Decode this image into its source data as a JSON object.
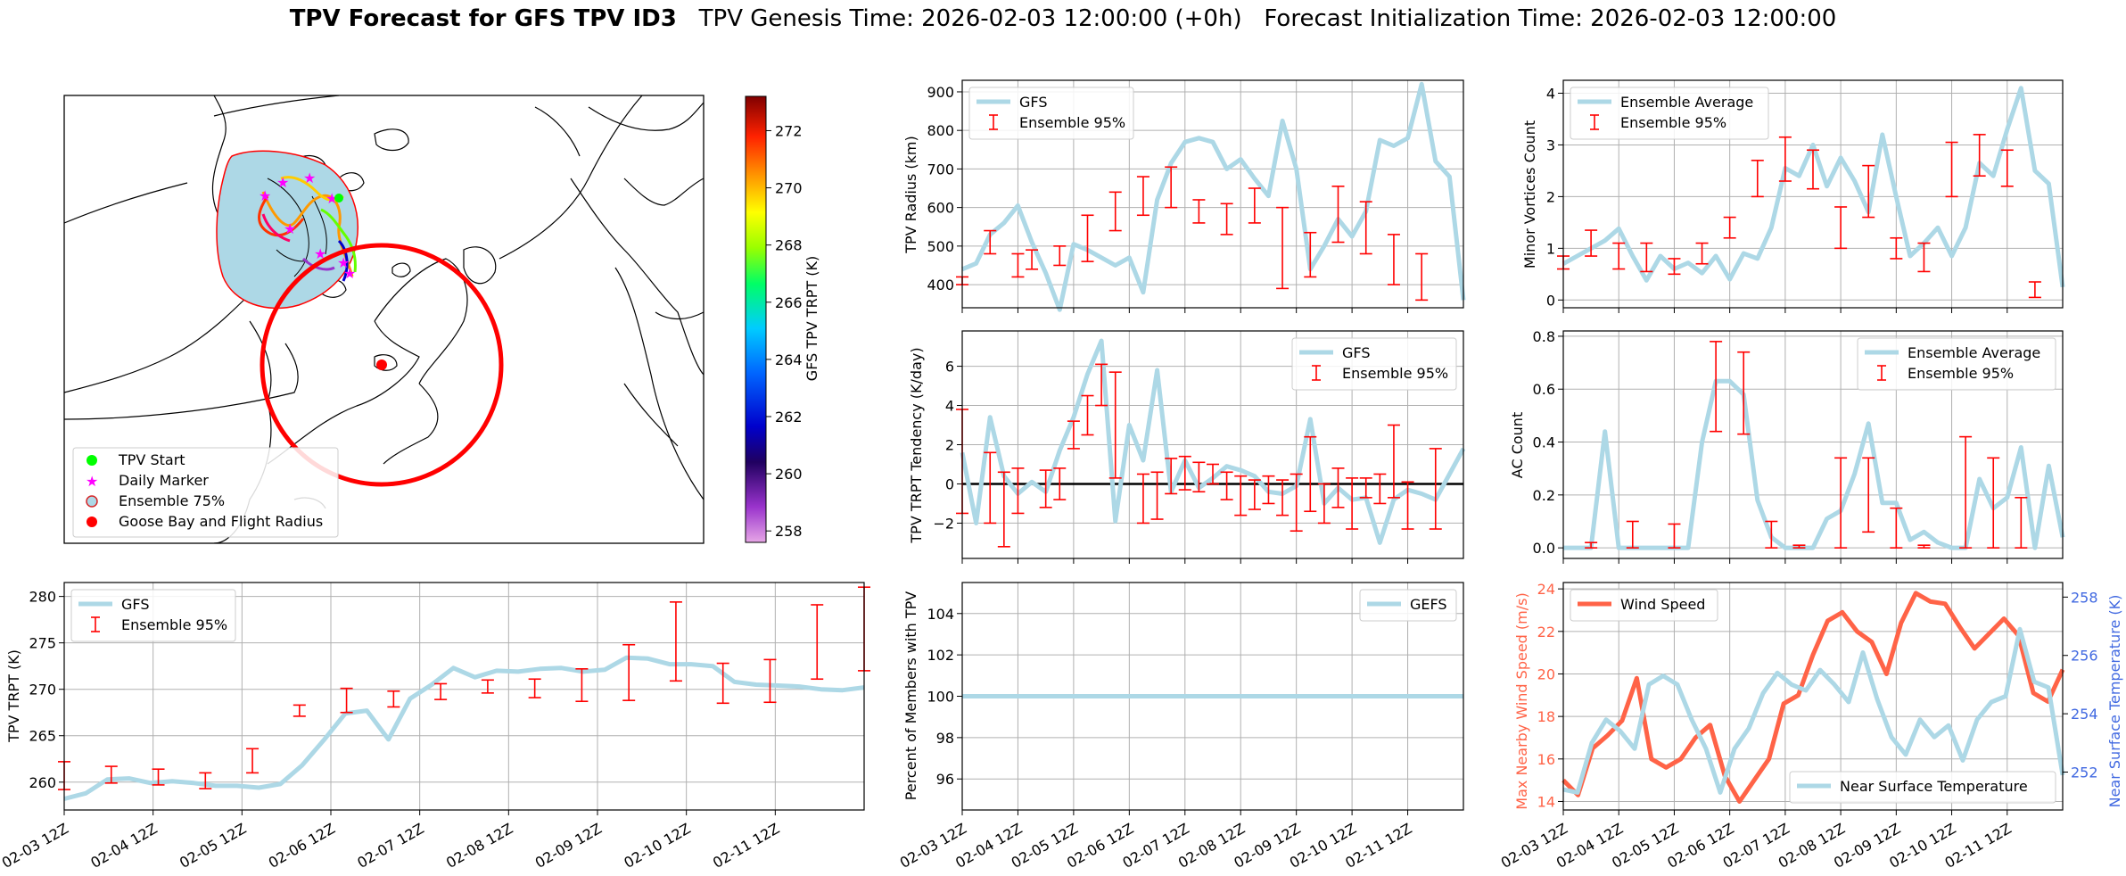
{
  "page_title": {
    "main": "TPV Forecast for GFS TPV ID3",
    "genesis": "TPV Genesis Time: 2026-02-03 12:00:00 (+0h)",
    "init": "Forecast Initialization Time: 2026-02-03 12:00:00"
  },
  "colors": {
    "gfs": "#add8e6",
    "ens": "#ff0000",
    "wind": "#ff6347",
    "temp": "#add8e6",
    "wind_axis": "#ff6347",
    "temp_axis": "#4169e1",
    "zero_line": "#000000",
    "map_fill": "#add8e6",
    "radius": "#ff0000"
  },
  "time_ticks": [
    "02-03 12Z",
    "02-04 12Z",
    "02-05 12Z",
    "02-06 12Z",
    "02-07 12Z",
    "02-08 12Z",
    "02-09 12Z",
    "02-10 12Z",
    "02-11 12Z"
  ],
  "chart_data": [
    {
      "id": "map",
      "type": "map",
      "legend": [
        {
          "label": "TPV Start",
          "marker": "circle",
          "color": "#00ff00"
        },
        {
          "label": "Daily Marker",
          "marker": "star",
          "color": "#ff00ff"
        },
        {
          "label": "Ensemble 75%",
          "marker": "circle-outline",
          "color": "#add8e6"
        },
        {
          "label": "Goose Bay and Flight Radius",
          "marker": "circle",
          "color": "#ff0000"
        }
      ],
      "colorbar": {
        "label": "GFS TPV TRPT (K)",
        "range": [
          257.6,
          273.2
        ],
        "ticks": [
          "258",
          "260",
          "262",
          "264",
          "266",
          "268",
          "270",
          "272"
        ]
      }
    },
    {
      "id": "radius",
      "type": "line",
      "ylabel": "TPV Radius (km)",
      "ylim": [
        340,
        930
      ],
      "yticks": [
        "400",
        "500",
        "600",
        "700",
        "800",
        "900"
      ],
      "legend": [
        "GFS",
        "Ensemble 95%"
      ],
      "legend_loc": "upper-left",
      "series": [
        {
          "name": "GFS",
          "values": [
            440,
            455,
            530,
            560,
            605,
            510,
            430,
            335,
            505,
            490,
            470,
            450,
            470,
            380,
            620,
            715,
            770,
            780,
            770,
            700,
            725,
            675,
            630,
            825,
            700,
            440,
            500,
            570,
            525,
            590,
            775,
            760,
            780,
            920,
            720,
            680,
            360
          ]
        }
      ],
      "errorbars": [
        {
          "i": 0,
          "lo": 400,
          "hi": 420
        },
        {
          "i": 2,
          "lo": 480,
          "hi": 540
        },
        {
          "i": 4,
          "lo": 420,
          "hi": 480
        },
        {
          "i": 5,
          "lo": 440,
          "hi": 490
        },
        {
          "i": 7,
          "lo": 450,
          "hi": 500
        },
        {
          "i": 9,
          "lo": 460,
          "hi": 580
        },
        {
          "i": 11,
          "lo": 540,
          "hi": 640
        },
        {
          "i": 13,
          "lo": 580,
          "hi": 680
        },
        {
          "i": 15,
          "lo": 600,
          "hi": 705
        },
        {
          "i": 17,
          "lo": 560,
          "hi": 620
        },
        {
          "i": 19,
          "lo": 530,
          "hi": 610
        },
        {
          "i": 21,
          "lo": 560,
          "hi": 650
        },
        {
          "i": 23,
          "lo": 390,
          "hi": 600
        },
        {
          "i": 25,
          "lo": 420,
          "hi": 535
        },
        {
          "i": 27,
          "lo": 510,
          "hi": 655
        },
        {
          "i": 29,
          "lo": 480,
          "hi": 615
        },
        {
          "i": 31,
          "lo": 400,
          "hi": 530
        },
        {
          "i": 33,
          "lo": 360,
          "hi": 480
        }
      ]
    },
    {
      "id": "minor",
      "type": "line",
      "ylabel": "Minor Vortices Count",
      "ylim": [
        -0.15,
        4.25
      ],
      "yticks": [
        "0",
        "1",
        "2",
        "3",
        "4"
      ],
      "legend": [
        "Ensemble Average",
        "Ensemble 95%"
      ],
      "legend_loc": "upper-left",
      "series": [
        {
          "name": "Ensemble Average",
          "values": [
            0.7,
            0.85,
            1.0,
            1.15,
            1.38,
            0.85,
            0.38,
            0.85,
            0.6,
            0.72,
            0.52,
            0.85,
            0.4,
            0.9,
            0.8,
            1.4,
            2.55,
            2.4,
            3.0,
            2.2,
            2.75,
            2.3,
            1.7,
            3.2,
            2.0,
            0.85,
            1.1,
            1.4,
            0.85,
            1.4,
            2.65,
            2.4,
            3.3,
            4.1,
            2.5,
            2.25,
            0.25
          ]
        }
      ],
      "errorbars": [
        {
          "i": 0,
          "lo": 0.6,
          "hi": 0.85
        },
        {
          "i": 2,
          "lo": 0.85,
          "hi": 1.35
        },
        {
          "i": 4,
          "lo": 0.6,
          "hi": 1.1
        },
        {
          "i": 6,
          "lo": 0.55,
          "hi": 1.1
        },
        {
          "i": 8,
          "lo": 0.5,
          "hi": 0.8
        },
        {
          "i": 10,
          "lo": 0.7,
          "hi": 1.1
        },
        {
          "i": 12,
          "lo": 1.2,
          "hi": 1.6
        },
        {
          "i": 14,
          "lo": 2.0,
          "hi": 2.7
        },
        {
          "i": 16,
          "lo": 2.3,
          "hi": 3.15
        },
        {
          "i": 18,
          "lo": 2.15,
          "hi": 2.9
        },
        {
          "i": 20,
          "lo": 1.0,
          "hi": 1.8
        },
        {
          "i": 22,
          "lo": 1.6,
          "hi": 2.6
        },
        {
          "i": 24,
          "lo": 0.8,
          "hi": 1.2
        },
        {
          "i": 26,
          "lo": 0.55,
          "hi": 1.1
        },
        {
          "i": 28,
          "lo": 2.0,
          "hi": 3.05
        },
        {
          "i": 30,
          "lo": 2.4,
          "hi": 3.2
        },
        {
          "i": 32,
          "lo": 2.2,
          "hi": 2.9
        },
        {
          "i": 34,
          "lo": 0.05,
          "hi": 0.35
        }
      ]
    },
    {
      "id": "tendency",
      "type": "line",
      "ylabel": "TPV TRPT Tendency (K/day)",
      "ylim": [
        -3.8,
        7.8
      ],
      "yticks": [
        "−2",
        "0",
        "2",
        "4",
        "6"
      ],
      "legend": [
        "GFS",
        "Ensemble 95%"
      ],
      "legend_loc": "upper-right",
      "zero_line": true,
      "series": [
        {
          "name": "GFS",
          "values": [
            1.6,
            -2.0,
            3.4,
            0.4,
            -0.5,
            0.1,
            -0.4,
            1.7,
            3.4,
            5.6,
            7.3,
            -1.9,
            3.0,
            1.2,
            5.8,
            -0.4,
            1.2,
            -0.2,
            0.3,
            0.9,
            0.7,
            0.4,
            -0.4,
            -0.5,
            -0.1,
            3.3,
            -1.0,
            -0.2,
            -0.8,
            -0.7,
            -3.0,
            -0.8,
            -0.3,
            -0.5,
            -0.8,
            0.5,
            1.8
          ]
        }
      ],
      "errorbars": [
        {
          "i": 0,
          "lo": -1.5,
          "hi": 3.8
        },
        {
          "i": 2,
          "lo": -2.0,
          "hi": 1.6
        },
        {
          "i": 3,
          "lo": -3.2,
          "hi": 0.6
        },
        {
          "i": 4,
          "lo": -1.5,
          "hi": 0.8
        },
        {
          "i": 6,
          "lo": -1.2,
          "hi": 0.7
        },
        {
          "i": 7,
          "lo": -0.8,
          "hi": 0.8
        },
        {
          "i": 8,
          "lo": 1.8,
          "hi": 3.2
        },
        {
          "i": 9,
          "lo": 2.5,
          "hi": 4.5
        },
        {
          "i": 10,
          "lo": 4.0,
          "hi": 6.1
        },
        {
          "i": 11,
          "lo": 0.3,
          "hi": 5.7
        },
        {
          "i": 13,
          "lo": -2.0,
          "hi": 0.5
        },
        {
          "i": 14,
          "lo": -1.8,
          "hi": 0.6
        },
        {
          "i": 15,
          "lo": -0.5,
          "hi": 1.3
        },
        {
          "i": 16,
          "lo": -0.3,
          "hi": 1.4
        },
        {
          "i": 17,
          "lo": -0.4,
          "hi": 1.1
        },
        {
          "i": 18,
          "lo": 0.0,
          "hi": 1.0
        },
        {
          "i": 19,
          "lo": -0.8,
          "hi": 0.6
        },
        {
          "i": 20,
          "lo": -1.6,
          "hi": 0.4
        },
        {
          "i": 21,
          "lo": -1.3,
          "hi": 0.2
        },
        {
          "i": 22,
          "lo": -1.0,
          "hi": 0.4
        },
        {
          "i": 23,
          "lo": -1.6,
          "hi": 0.2
        },
        {
          "i": 24,
          "lo": -2.4,
          "hi": 0.5
        },
        {
          "i": 25,
          "lo": -1.4,
          "hi": 2.4
        },
        {
          "i": 26,
          "lo": -2.0,
          "hi": 0.0
        },
        {
          "i": 27,
          "lo": -1.2,
          "hi": 0.8
        },
        {
          "i": 28,
          "lo": -2.3,
          "hi": 0.3
        },
        {
          "i": 29,
          "lo": -0.7,
          "hi": 0.3
        },
        {
          "i": 30,
          "lo": -1.0,
          "hi": 0.5
        },
        {
          "i": 31,
          "lo": -0.7,
          "hi": 3.0
        },
        {
          "i": 32,
          "lo": -2.3,
          "hi": 0.1
        },
        {
          "i": 34,
          "lo": -2.3,
          "hi": 1.8
        }
      ]
    },
    {
      "id": "ac",
      "type": "line",
      "ylabel": "AC Count",
      "ylim": [
        -0.04,
        0.82
      ],
      "yticks": [
        "0.0",
        "0.2",
        "0.4",
        "0.6",
        "0.8"
      ],
      "legend": [
        "Ensemble Average",
        "Ensemble 95%"
      ],
      "legend_loc": "upper-right",
      "series": [
        {
          "name": "Ensemble Average",
          "values": [
            0.0,
            0.0,
            0.0,
            0.44,
            0.0,
            0.0,
            0.0,
            0.0,
            0.0,
            0.0,
            0.4,
            0.63,
            0.63,
            0.58,
            0.18,
            0.04,
            0.0,
            0.0,
            0.0,
            0.11,
            0.14,
            0.28,
            0.47,
            0.17,
            0.17,
            0.03,
            0.06,
            0.02,
            0.0,
            0.0,
            0.26,
            0.15,
            0.19,
            0.38,
            0.0,
            0.31,
            0.04
          ]
        }
      ],
      "errorbars": [
        {
          "i": 2,
          "lo": 0.0,
          "hi": 0.02
        },
        {
          "i": 5,
          "lo": 0.0,
          "hi": 0.1
        },
        {
          "i": 8,
          "lo": 0.0,
          "hi": 0.09
        },
        {
          "i": 11,
          "lo": 0.44,
          "hi": 0.78
        },
        {
          "i": 13,
          "lo": 0.43,
          "hi": 0.74
        },
        {
          "i": 15,
          "lo": 0.0,
          "hi": 0.1
        },
        {
          "i": 17,
          "lo": 0.0,
          "hi": 0.01
        },
        {
          "i": 20,
          "lo": 0.0,
          "hi": 0.34
        },
        {
          "i": 22,
          "lo": 0.06,
          "hi": 0.34
        },
        {
          "i": 24,
          "lo": 0.0,
          "hi": 0.15
        },
        {
          "i": 26,
          "lo": 0.0,
          "hi": 0.01
        },
        {
          "i": 29,
          "lo": 0.0,
          "hi": 0.42
        },
        {
          "i": 31,
          "lo": 0.0,
          "hi": 0.34
        },
        {
          "i": 33,
          "lo": 0.0,
          "hi": 0.19
        }
      ]
    },
    {
      "id": "trpt",
      "type": "line",
      "ylabel": "TPV TRPT (K)",
      "ylim": [
        257,
        281.5
      ],
      "yticks": [
        "260",
        "265",
        "270",
        "275",
        "280"
      ],
      "legend": [
        "GFS",
        "Ensemble 95%"
      ],
      "legend_loc": "upper-left",
      "series": [
        {
          "name": "GFS",
          "values": [
            258.2,
            258.8,
            260.3,
            260.4,
            259.9,
            260.1,
            259.9,
            259.6,
            259.6,
            259.4,
            259.8,
            261.8,
            264.5,
            267.4,
            267.7,
            264.6,
            269.0,
            270.5,
            272.3,
            271.3,
            272.0,
            271.9,
            272.2,
            272.3,
            271.9,
            272.1,
            273.4,
            273.3,
            272.7,
            272.7,
            272.5,
            270.8,
            270.5,
            270.4,
            270.3,
            270.0,
            269.9,
            270.2
          ]
        }
      ],
      "errorbars": [
        {
          "i": 0,
          "lo": 259.2,
          "hi": 262.2
        },
        {
          "i": 3,
          "lo": 259.9,
          "hi": 261.7
        },
        {
          "i": 6,
          "lo": 259.7,
          "hi": 261.4
        },
        {
          "i": 9,
          "lo": 259.3,
          "hi": 261.0
        },
        {
          "i": 12,
          "lo": 261.0,
          "hi": 263.6
        },
        {
          "i": 15,
          "lo": 267.1,
          "hi": 268.3
        },
        {
          "i": 18,
          "lo": 267.5,
          "hi": 270.1
        },
        {
          "i": 21,
          "lo": 268.1,
          "hi": 269.8
        },
        {
          "i": 24,
          "lo": 268.9,
          "hi": 270.6
        },
        {
          "i": 27,
          "lo": 269.6,
          "hi": 271.0
        },
        {
          "i": 30,
          "lo": 269.1,
          "hi": 271.1
        },
        {
          "i": 33,
          "lo": 268.7,
          "hi": 272.2
        },
        {
          "i": 36,
          "lo": 268.8,
          "hi": 274.8
        },
        {
          "i": 39,
          "lo": 270.9,
          "hi": 279.4
        },
        {
          "i": 42,
          "lo": 268.5,
          "hi": 272.8
        },
        {
          "i": 45,
          "lo": 268.6,
          "hi": 273.2
        },
        {
          "i": 48,
          "lo": 271.1,
          "hi": 279.1
        },
        {
          "i": 51,
          "lo": 272.0,
          "hi": 281.0
        }
      ]
    },
    {
      "id": "percent",
      "type": "line",
      "ylabel": "Percent of Members with TPV",
      "ylim": [
        94.5,
        105.5
      ],
      "yticks": [
        "96",
        "98",
        "100",
        "102",
        "104"
      ],
      "legend": [
        "GEFS"
      ],
      "legend_loc": "upper-right",
      "series": [
        {
          "name": "GEFS",
          "values": [
            100,
            100,
            100,
            100,
            100,
            100,
            100,
            100,
            100,
            100,
            100,
            100,
            100,
            100,
            100,
            100,
            100,
            100,
            100,
            100,
            100,
            100,
            100,
            100,
            100,
            100,
            100,
            100,
            100,
            100,
            100,
            100,
            100,
            100,
            100,
            100,
            100
          ]
        }
      ]
    },
    {
      "id": "wind",
      "type": "line",
      "ylabel": "Max Nearby Wind Speed (m/s)",
      "y2label": "Near Surface Temperature (K)",
      "ylim": [
        13.6,
        24.3
      ],
      "y2lim": [
        250.7,
        258.5
      ],
      "yticks": [
        "14",
        "16",
        "18",
        "20",
        "22",
        "24"
      ],
      "y2ticks": [
        "252",
        "254",
        "256",
        "258"
      ],
      "legend": [
        "Wind Speed"
      ],
      "legend2": [
        "Near Surface Temperature"
      ],
      "legend_loc": "upper-left",
      "legend2_loc": "lower-right",
      "series": [
        {
          "name": "Wind Speed",
          "axis": "left",
          "values": [
            15.0,
            14.3,
            16.5,
            17.1,
            17.8,
            19.8,
            16.0,
            15.6,
            16.0,
            17.0,
            17.6,
            15.2,
            14.0,
            15.0,
            16.0,
            18.6,
            19.0,
            20.9,
            22.5,
            22.9,
            22.0,
            21.5,
            20.0,
            22.4,
            23.8,
            23.4,
            23.3,
            22.2,
            21.2,
            21.9,
            22.6,
            21.8,
            19.1,
            18.7,
            20.2
          ]
        },
        {
          "name": "Near Surface Temperature",
          "axis": "right",
          "values": [
            251.4,
            251.3,
            253.0,
            253.8,
            253.4,
            252.8,
            255.0,
            255.3,
            255.0,
            253.8,
            252.8,
            251.3,
            252.8,
            253.5,
            254.7,
            255.4,
            255.0,
            254.8,
            255.5,
            255.0,
            254.4,
            256.1,
            254.5,
            253.2,
            252.6,
            253.8,
            253.2,
            253.6,
            252.4,
            253.8,
            254.4,
            254.6,
            256.9,
            255.1,
            254.9,
            251.9
          ]
        }
      ]
    }
  ]
}
